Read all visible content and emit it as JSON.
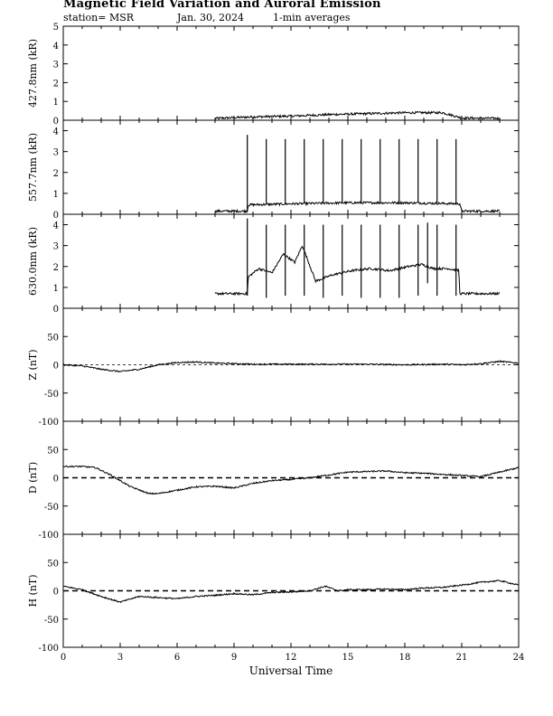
{
  "header": {
    "title": "Magnetic Field Variation and Auroral Emission",
    "station": "station= MSR",
    "date": "Jan. 30, 2024",
    "averaging": "1-min averages"
  },
  "chart_data": [
    {
      "type": "line",
      "ylabel": "427.8nm (kR)",
      "ylim": [
        0,
        5
      ],
      "yticks": [
        0,
        1,
        2,
        3,
        4,
        5
      ],
      "xlim": [
        0,
        24
      ],
      "series": [
        {
          "x": [
            8,
            10,
            12,
            14,
            16,
            18,
            20,
            21,
            23
          ],
          "values": [
            0.1,
            0.18,
            0.22,
            0.3,
            0.35,
            0.4,
            0.4,
            0.12,
            0.1
          ]
        }
      ],
      "grid": false
    },
    {
      "type": "line",
      "ylabel": "557.7nm (kR)",
      "ylim": [
        0,
        4.5
      ],
      "yticks": [
        0,
        1,
        2,
        3,
        4
      ],
      "xlim": [
        0,
        24
      ],
      "series": [
        {
          "x": [
            8,
            9.7,
            9.75,
            12,
            15,
            18,
            20.9,
            21,
            23
          ],
          "values": [
            0.15,
            0.15,
            0.45,
            0.5,
            0.55,
            0.55,
            0.5,
            0.15,
            0.15
          ]
        }
      ],
      "spikes": {
        "x": [
          9.7,
          10.7,
          11.7,
          12.7,
          13.7,
          14.7,
          15.7,
          16.7,
          17.7,
          18.7,
          19.7,
          20.7
        ],
        "values": [
          3.8,
          3.6,
          3.6,
          3.6,
          3.6,
          3.6,
          3.6,
          3.6,
          3.6,
          3.6,
          3.6,
          3.6
        ]
      },
      "grid": false
    },
    {
      "type": "line",
      "ylabel": "630.0nm (kR)",
      "ylim": [
        0,
        4.5
      ],
      "yticks": [
        0,
        1,
        2,
        3,
        4
      ],
      "xlim": [
        0,
        24
      ],
      "series": [
        {
          "x": [
            8,
            9.7,
            9.75,
            10.3,
            11,
            11.6,
            12.2,
            12.6,
            13.3,
            14.2,
            15.2,
            16.2,
            17.2,
            18.2,
            18.9,
            19.5,
            20.3,
            20.85,
            20.9,
            23
          ],
          "values": [
            0.7,
            0.7,
            1.5,
            1.9,
            1.7,
            2.6,
            2.2,
            3.0,
            1.3,
            1.6,
            1.8,
            1.9,
            1.8,
            2.0,
            2.1,
            1.9,
            1.9,
            1.8,
            0.7,
            0.7
          ]
        }
      ],
      "spikes": {
        "x": [
          9.7,
          10.7,
          11.7,
          12.7,
          13.7,
          14.7,
          15.7,
          16.7,
          17.7,
          18.7,
          19.2,
          19.7,
          20.7
        ],
        "lows": [
          0.6,
          0.5,
          0.6,
          0.6,
          0.5,
          0.6,
          0.5,
          0.5,
          0.5,
          0.6,
          1.2,
          0.6,
          0.6
        ],
        "highs": [
          4.3,
          4.0,
          4.0,
          4.0,
          4.0,
          4.0,
          4.0,
          4.0,
          4.0,
          4.0,
          4.1,
          4.0,
          4.0
        ]
      },
      "grid": false
    },
    {
      "type": "line",
      "ylabel": "Z (nT)",
      "ylim": [
        -100,
        100
      ],
      "yticks": [
        -100,
        -50,
        0,
        50
      ],
      "xlim": [
        0,
        24
      ],
      "baseline": "dashed",
      "series": [
        {
          "x": [
            0,
            1,
            2,
            3,
            4,
            5,
            6,
            7,
            8,
            9,
            10,
            12,
            14,
            16,
            18,
            20,
            21,
            22,
            23,
            24
          ],
          "values": [
            0,
            -2,
            -8,
            -12,
            -8,
            0,
            4,
            5,
            3,
            2,
            1,
            1,
            1,
            1,
            0,
            1,
            0,
            2,
            6,
            3
          ]
        }
      ],
      "grid": false
    },
    {
      "type": "line",
      "ylabel": "D (nT)",
      "ylim": [
        -100,
        100
      ],
      "yticks": [
        -100,
        -50,
        0,
        50
      ],
      "xlim": [
        0,
        24
      ],
      "baseline": "dashed",
      "series": [
        {
          "x": [
            0,
            1,
            1.7,
            2.5,
            3.5,
            4.5,
            5,
            6,
            7,
            8,
            9,
            9.5,
            10,
            11,
            12,
            13,
            14,
            15,
            16,
            17,
            18,
            19,
            20,
            21,
            22,
            23,
            24
          ],
          "values": [
            20,
            20,
            18,
            5,
            -15,
            -28,
            -28,
            -22,
            -16,
            -15,
            -18,
            -14,
            -10,
            -5,
            -3,
            0,
            5,
            10,
            11,
            12,
            9,
            8,
            6,
            4,
            2,
            10,
            18
          ]
        }
      ],
      "grid": false
    },
    {
      "type": "line",
      "ylabel": "H (nT)",
      "ylim": [
        -100,
        100
      ],
      "yticks": [
        -100,
        -50,
        0,
        50
      ],
      "xlim": [
        0,
        24
      ],
      "xticks": [
        0,
        3,
        6,
        9,
        12,
        15,
        18,
        21,
        24
      ],
      "xlabel": "Universal Time",
      "baseline": "dashed",
      "series": [
        {
          "x": [
            0,
            1,
            2,
            3,
            4,
            5,
            6,
            7,
            8,
            9,
            10,
            11,
            12,
            13,
            13.8,
            14.5,
            15,
            16,
            17,
            18,
            19,
            20,
            21,
            22,
            23,
            24
          ],
          "values": [
            8,
            2,
            -10,
            -20,
            -10,
            -12,
            -14,
            -10,
            -8,
            -5,
            -7,
            -3,
            -2,
            0,
            8,
            0,
            2,
            2,
            3,
            2,
            5,
            6,
            10,
            15,
            18,
            10
          ]
        }
      ],
      "grid": false
    }
  ]
}
